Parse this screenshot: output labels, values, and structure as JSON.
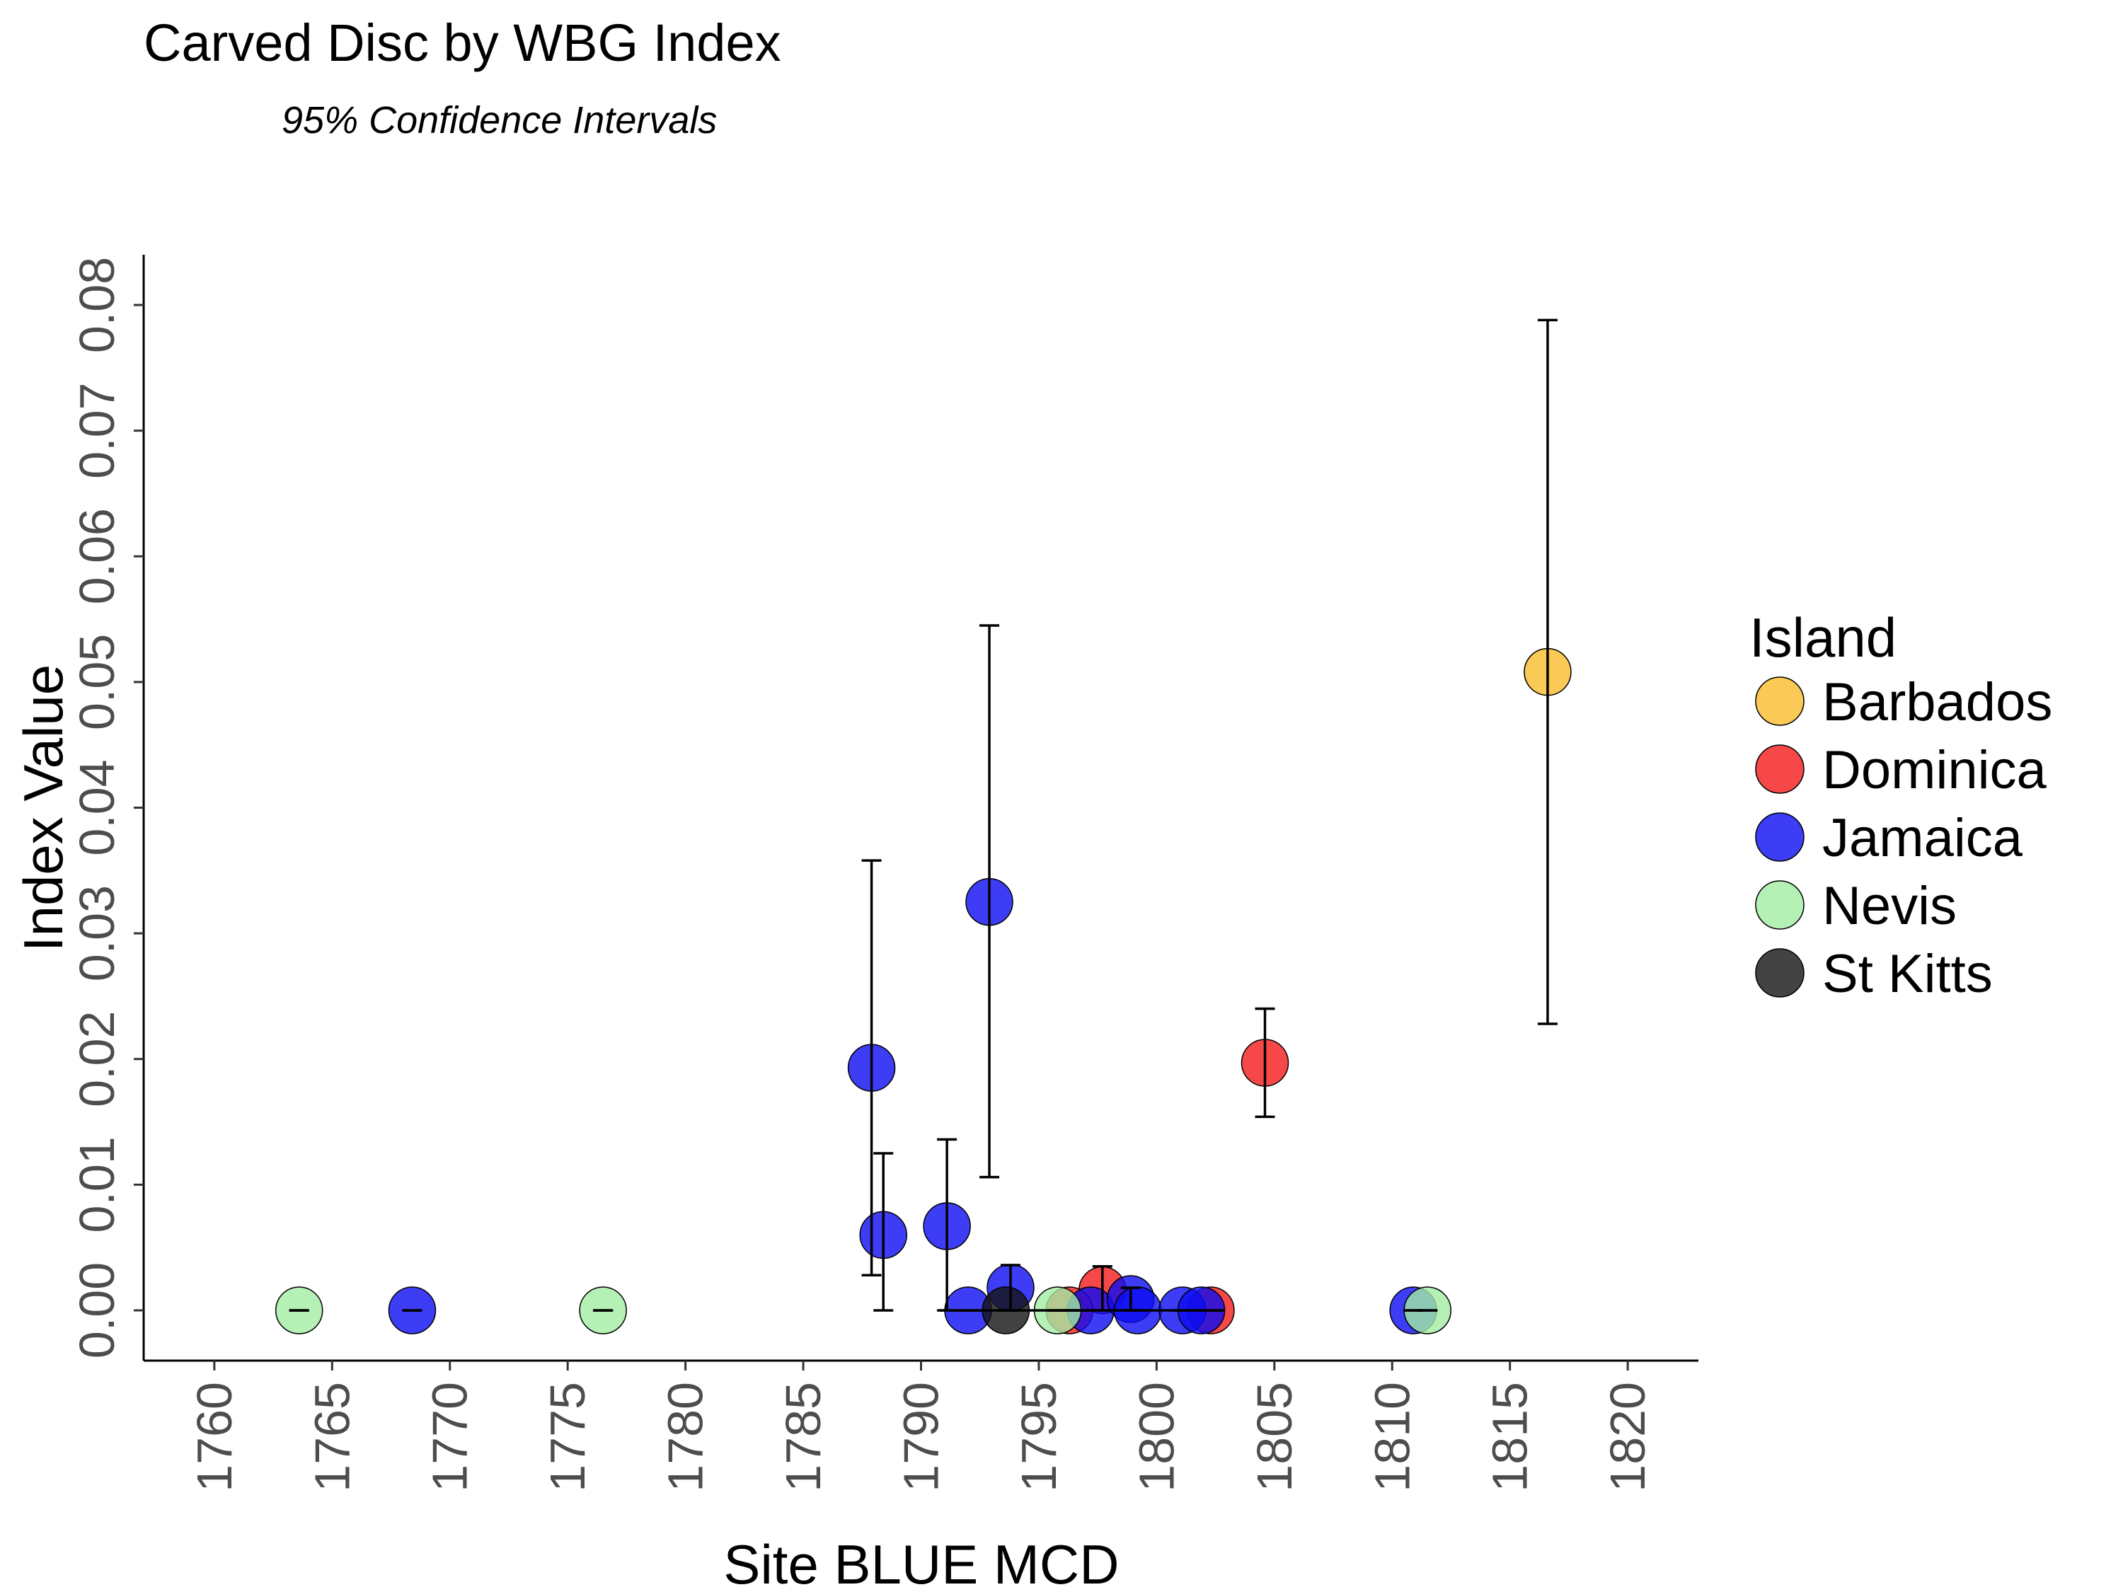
{
  "chart_data": {
    "type": "scatter",
    "title": "Carved Disc by WBG Index",
    "subtitle": "95% Confidence Intervals",
    "xlabel": "Site BLUE MCD",
    "ylabel": "Index Value",
    "xlim": [
      1757,
      1823
    ],
    "ylim": [
      -0.004,
      0.084
    ],
    "x_ticks": [
      1760,
      1765,
      1770,
      1775,
      1780,
      1785,
      1790,
      1795,
      1800,
      1805,
      1810,
      1815,
      1820
    ],
    "x_tick_labels": [
      "1760",
      "1765",
      "1770",
      "1775",
      "1780",
      "1785",
      "1790",
      "1795",
      "1800",
      "1805",
      "1810",
      "1815",
      "1820"
    ],
    "y_ticks": [
      0.0,
      0.01,
      0.02,
      0.03,
      0.04,
      0.05,
      0.06,
      0.07,
      0.08
    ],
    "y_tick_labels": [
      "0.00",
      "0.01",
      "0.02",
      "0.03",
      "0.04",
      "0.05",
      "0.06",
      "0.07",
      "0.08"
    ],
    "grid": false,
    "legend": {
      "title": "Island",
      "position": "right",
      "entries": [
        {
          "label": "Barbados",
          "color": "#f9bb2c"
        },
        {
          "label": "Dominica",
          "color": "#f41a1a"
        },
        {
          "label": "Jamaica",
          "color": "#0d0df2"
        },
        {
          "label": "Nevis",
          "color": "#a2eca2"
        },
        {
          "label": "St Kitts",
          "color": "#141414"
        }
      ]
    },
    "series": [
      {
        "name": "Barbados",
        "points": [
          {
            "x": 1816.6,
            "y": 0.0508,
            "lo": 0.0228,
            "hi": 0.0788
          }
        ]
      },
      {
        "name": "Dominica",
        "points": [
          {
            "x": 1804.6,
            "y": 0.0197,
            "lo": 0.0154,
            "hi": 0.024
          },
          {
            "x": 1797.7,
            "y": 0.0016,
            "lo": 0.0,
            "hi": 0.0035
          },
          {
            "x": 1796.3,
            "y": 0.0,
            "lo": 0.0,
            "hi": 0.0
          },
          {
            "x": 1802.3,
            "y": 0.0,
            "lo": 0.0,
            "hi": 0.0
          }
        ]
      },
      {
        "name": "Jamaica",
        "points": [
          {
            "x": 1768.4,
            "y": 0.0,
            "lo": 0.0,
            "hi": 0.0
          },
          {
            "x": 1787.9,
            "y": 0.0193,
            "lo": 0.0028,
            "hi": 0.0358
          },
          {
            "x": 1788.4,
            "y": 0.006,
            "lo": 0.0,
            "hi": 0.0125
          },
          {
            "x": 1791.1,
            "y": 0.0067,
            "lo": 0.0,
            "hi": 0.0136
          },
          {
            "x": 1792.9,
            "y": 0.0325,
            "lo": 0.0106,
            "hi": 0.0545
          },
          {
            "x": 1792.0,
            "y": 0.0,
            "lo": 0.0,
            "hi": 0.0
          },
          {
            "x": 1793.8,
            "y": 0.0018,
            "lo": 0.0,
            "hi": 0.0036
          },
          {
            "x": 1797.2,
            "y": 0.0,
            "lo": 0.0,
            "hi": 0.0
          },
          {
            "x": 1798.9,
            "y": 0.0009,
            "lo": 0.0,
            "hi": 0.0018
          },
          {
            "x": 1799.2,
            "y": 0.0,
            "lo": 0.0,
            "hi": 0.0
          },
          {
            "x": 1801.1,
            "y": 0.0,
            "lo": 0.0,
            "hi": 0.0
          },
          {
            "x": 1801.9,
            "y": 0.0,
            "lo": 0.0,
            "hi": 0.0
          },
          {
            "x": 1810.9,
            "y": 0.0,
            "lo": 0.0,
            "hi": 0.0
          }
        ]
      },
      {
        "name": "Nevis",
        "points": [
          {
            "x": 1763.6,
            "y": 0.0,
            "lo": 0.0,
            "hi": 0.0
          },
          {
            "x": 1776.5,
            "y": 0.0,
            "lo": 0.0,
            "hi": 0.0
          },
          {
            "x": 1795.8,
            "y": 0.0,
            "lo": 0.0,
            "hi": 0.0
          },
          {
            "x": 1811.5,
            "y": 0.0,
            "lo": 0.0,
            "hi": 0.0
          }
        ]
      },
      {
        "name": "St Kitts",
        "points": [
          {
            "x": 1793.6,
            "y": 0.0,
            "lo": 0.0,
            "hi": 0.0
          }
        ]
      }
    ],
    "horizontal_segments": [
      {
        "x_from": 1790.8,
        "x_to": 1802.9,
        "y": 0.0
      }
    ]
  }
}
